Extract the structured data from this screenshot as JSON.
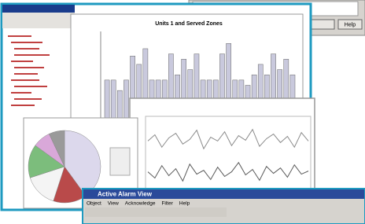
{
  "top_window": {
    "button": "Help"
  },
  "bar_chart": {
    "type": "bar",
    "title": "Units 1 and Served Zones",
    "color": "#c9c9dd",
    "ylim": [
      0,
      100
    ],
    "values": [
      55,
      55,
      45,
      55,
      78,
      70,
      85,
      55,
      55,
      55,
      80,
      60,
      75,
      65,
      80,
      55,
      55,
      55,
      80,
      90,
      55,
      55,
      50,
      60,
      70,
      60,
      80,
      65,
      75,
      60
    ]
  },
  "pie_chart": {
    "type": "pie",
    "values": [
      40,
      15,
      15,
      15,
      8,
      7
    ],
    "colors": [
      "#dcd8ec",
      "#b94a4a",
      "#f4f4f4",
      "#7cbd7c",
      "#d9a8d9",
      "#9a9a9a"
    ]
  },
  "line_chart": {
    "type": "line",
    "ylim": [
      0,
      100
    ],
    "series": [
      {
        "color": "#8a8a8a",
        "values": [
          70,
          78,
          62,
          74,
          80,
          66,
          72,
          84,
          60,
          75,
          70,
          82,
          64,
          77,
          71,
          85,
          63,
          73,
          79,
          68,
          76,
          62,
          81,
          70
        ]
      },
      {
        "color": "#5a5a5a",
        "values": [
          30,
          22,
          38,
          25,
          34,
          18,
          40,
          27,
          32,
          20,
          36,
          24,
          30,
          42,
          26,
          33,
          19,
          37,
          28,
          35,
          23,
          39,
          27,
          31
        ]
      }
    ]
  },
  "alarm_window": {
    "title": "Active Alarm View",
    "menu": [
      "Object",
      "View",
      "Acknowledge",
      "Filter",
      "Help"
    ]
  }
}
